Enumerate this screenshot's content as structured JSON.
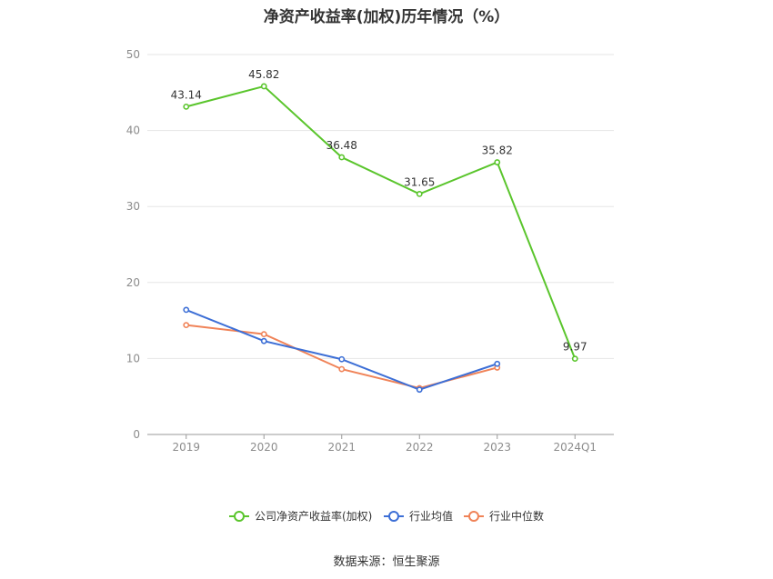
{
  "chart_data": {
    "type": "line",
    "title": "净资产收益率(加权)历年情况（%）",
    "categories": [
      "2019",
      "2020",
      "2021",
      "2022",
      "2023",
      "2024Q1"
    ],
    "ylim": [
      0,
      50
    ],
    "yticks": [
      0,
      10,
      20,
      30,
      40,
      50
    ],
    "grid": true,
    "legend_position": "bottom",
    "series": [
      {
        "name": "公司净资产收益率(加权)",
        "color": "#5ac52c",
        "values": [
          43.14,
          45.82,
          36.48,
          31.65,
          35.82,
          9.97
        ],
        "labels": [
          "43.14",
          "45.82",
          "36.48",
          "31.65",
          "35.82",
          "9.97"
        ]
      },
      {
        "name": "行业均值",
        "color": "#3d6fd6",
        "values": [
          16.4,
          12.3,
          9.9,
          5.9,
          9.3,
          null
        ]
      },
      {
        "name": "行业中位数",
        "color": "#f08358",
        "values": [
          14.4,
          13.2,
          8.6,
          6.1,
          8.8,
          null
        ]
      }
    ]
  },
  "source_text": "数据来源：恒生聚源"
}
